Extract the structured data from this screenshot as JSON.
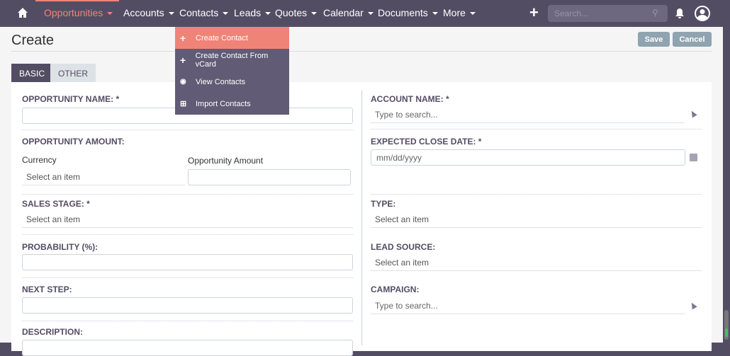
{
  "nav": {
    "items": [
      {
        "label": "Opportunities",
        "active": true
      },
      {
        "label": "Accounts"
      },
      {
        "label": "Contacts"
      },
      {
        "label": "Leads"
      },
      {
        "label": "Quotes"
      },
      {
        "label": "Calendar"
      },
      {
        "label": "Documents"
      },
      {
        "label": "More"
      }
    ],
    "search_placeholder": "Search...",
    "accent": "#f08377",
    "bg": "#534d64"
  },
  "dropdown": {
    "items": [
      {
        "label": "Create Contact",
        "icon": "plus-icon"
      },
      {
        "label": "Create Contact From vCard",
        "icon": "plus-icon"
      },
      {
        "label": "View Contacts",
        "icon": "eye-icon"
      },
      {
        "label": "Import Contacts",
        "icon": "import-icon"
      }
    ]
  },
  "page": {
    "title": "Create",
    "save": "Save",
    "cancel": "Cancel"
  },
  "tabs": [
    {
      "label": "BASIC",
      "active": true
    },
    {
      "label": "OTHER"
    }
  ],
  "form": {
    "opportunity_name": "OPPORTUNITY NAME: *",
    "opportunity_amount": "OPPORTUNITY AMOUNT:",
    "currency": "Currency",
    "currency_value": "Select an item",
    "amount_sub": "Opportunity Amount",
    "sales_stage": "SALES STAGE: *",
    "sales_stage_value": "Select an item",
    "probability": "PROBABILITY (%):",
    "next_step": "NEXT STEP:",
    "description": "DESCRIPTION:",
    "account_name": "ACCOUNT NAME: *",
    "account_placeholder": "Type to search...",
    "close_date": "EXPECTED CLOSE DATE: *",
    "close_date_placeholder": "mm/dd/yyyy",
    "type": "TYPE:",
    "type_value": "Select an item",
    "lead_source": "LEAD SOURCE:",
    "lead_source_value": "Select an item",
    "campaign": "CAMPAIGN:",
    "campaign_placeholder": "Type to search..."
  }
}
